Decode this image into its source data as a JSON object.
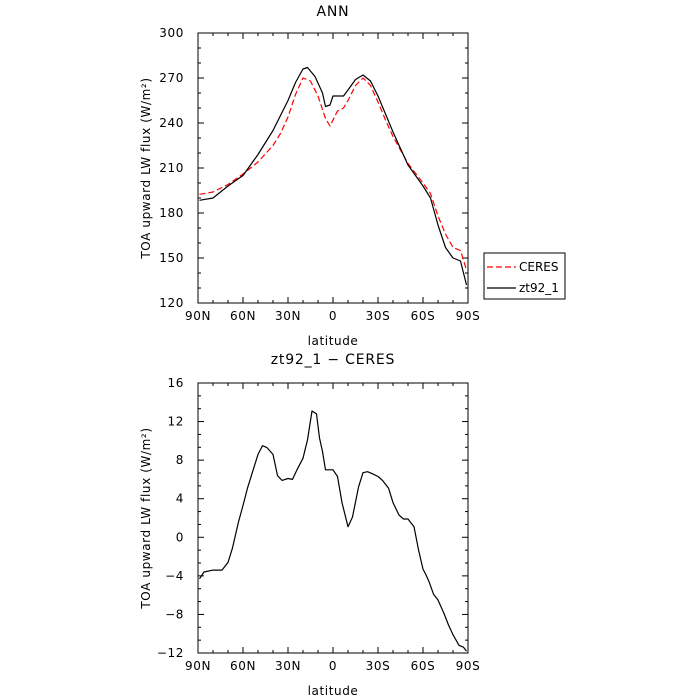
{
  "chart_data": [
    {
      "type": "line",
      "title": "ANN",
      "xlabel": "latitude",
      "ylabel": "TOA upward LW flux (W/m²)",
      "xlim": [
        90,
        -90
      ],
      "ylim": [
        120,
        300
      ],
      "x_ticks": [
        90,
        60,
        30,
        0,
        -30,
        -60,
        -90
      ],
      "x_tick_labels": [
        "90N",
        "60N",
        "30N",
        "0",
        "30S",
        "60S",
        "90S"
      ],
      "y_ticks": [
        120,
        150,
        180,
        210,
        240,
        270,
        300
      ],
      "y_tick_labels": [
        "120",
        "150",
        "180",
        "210",
        "240",
        "270",
        "300"
      ],
      "legend": {
        "position": "outside-right",
        "entries": [
          "CERES",
          "zt92_1"
        ]
      },
      "series": [
        {
          "name": "CERES",
          "color": "#ff0000",
          "dash": "dashed",
          "x": [
            89,
            80,
            70,
            60,
            50,
            40,
            35,
            30,
            25,
            20,
            15,
            10,
            5,
            2,
            0,
            -3,
            -7,
            -10,
            -15,
            -20,
            -25,
            -30,
            -35,
            -40,
            -50,
            -60,
            -65,
            -70,
            -75,
            -80,
            -85,
            -89
          ],
          "y": [
            192.5,
            194,
            199,
            206,
            214,
            225,
            233,
            244,
            259,
            270,
            268,
            258,
            243,
            238,
            242,
            248,
            250,
            255,
            265,
            270,
            265,
            254,
            242,
            231,
            213,
            200,
            193,
            178,
            166,
            157,
            155,
            142
          ]
        },
        {
          "name": "zt92_1",
          "color": "#000000",
          "dash": "solid",
          "x": [
            89,
            80,
            70,
            60,
            50,
            40,
            35,
            30,
            25,
            20,
            17,
            12,
            7,
            5,
            2,
            0,
            -3,
            -7,
            -10,
            -15,
            -20,
            -25,
            -30,
            -35,
            -40,
            -50,
            -60,
            -65,
            -70,
            -75,
            -80,
            -85,
            -89
          ],
          "y": [
            188.5,
            190,
            198,
            205,
            219,
            235,
            245,
            255,
            267,
            276,
            277,
            271,
            260,
            251,
            252,
            258,
            258,
            258,
            262,
            269,
            272,
            268,
            258,
            246,
            234,
            212,
            198,
            190,
            172,
            157,
            150,
            148,
            132
          ]
        }
      ]
    },
    {
      "type": "line",
      "title": "zt92_1 − CERES",
      "xlabel": "latitude",
      "ylabel": "TOA upward LW flux (W/m²)",
      "xlim": [
        90,
        -90
      ],
      "ylim": [
        -12,
        16
      ],
      "x_ticks": [
        90,
        60,
        30,
        0,
        -30,
        -60,
        -90
      ],
      "x_tick_labels": [
        "90N",
        "60N",
        "30N",
        "0",
        "30S",
        "60S",
        "90S"
      ],
      "y_ticks": [
        -12,
        -8,
        -4,
        0,
        4,
        8,
        12,
        16
      ],
      "y_tick_labels": [
        "−12",
        "−8",
        "−4",
        "0",
        "4",
        "8",
        "12",
        "16"
      ],
      "series": [
        {
          "color": "#000000",
          "dash": "solid",
          "x": [
            89,
            86,
            80,
            74,
            70,
            67,
            63,
            60,
            57,
            54,
            50,
            47,
            44,
            40,
            37,
            34,
            30,
            27,
            24,
            20,
            17,
            14,
            11,
            9,
            7,
            5,
            3,
            0,
            -3,
            -6,
            -10,
            -13,
            -17,
            -20,
            -23,
            -26,
            -30,
            -33,
            -37,
            -40,
            -44,
            -47,
            -50,
            -54,
            -57,
            -60,
            -62,
            -64,
            -67,
            -70,
            -74,
            -77,
            -80,
            -84,
            -87,
            -89
          ],
          "y": [
            -4.3,
            -3.6,
            -3.4,
            -3.4,
            -2.6,
            -1.1,
            1.6,
            3.3,
            5.1,
            6.6,
            8.6,
            9.5,
            9.3,
            8.6,
            6.4,
            5.9,
            6.1,
            6.0,
            7.0,
            8.2,
            10.1,
            13.1,
            12.8,
            10.3,
            8.9,
            7.0,
            7.0,
            7.0,
            6.3,
            3.6,
            1.1,
            2.1,
            5.2,
            6.7,
            6.8,
            6.6,
            6.3,
            5.9,
            5.1,
            3.6,
            2.3,
            1.9,
            1.9,
            1.1,
            -1.3,
            -3.3,
            -3.9,
            -4.6,
            -5.9,
            -6.5,
            -7.9,
            -9.1,
            -10.1,
            -11.2,
            -11.4,
            -11.8
          ]
        }
      ]
    }
  ]
}
